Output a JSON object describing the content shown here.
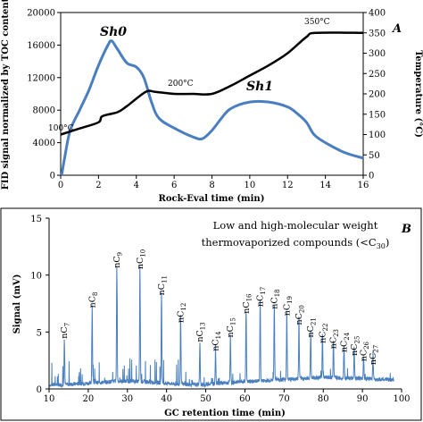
{
  "chart_data": [
    {
      "type": "line",
      "panel_label": "A",
      "xlabel": "Rock-Eval  time  (min)",
      "ylabel": "FID signal normalized by TOC content",
      "ylabel_right": "Temperature  (°C)",
      "xlim": [
        0,
        16
      ],
      "ylim": [
        0,
        20000
      ],
      "ylim_right": [
        0,
        400
      ],
      "x_ticks": [
        "0",
        "2",
        "4",
        "6",
        "8",
        "10",
        "12",
        "14",
        "16"
      ],
      "y_ticks": [
        "0",
        "4000",
        "8000",
        "12000",
        "16000",
        "20000"
      ],
      "y_right_ticks": [
        "0",
        "50",
        "100",
        "150",
        "200",
        "250",
        "300",
        "350",
        "400"
      ],
      "series": [
        {
          "name": "Sh0 / Sh1",
          "color": "#4a7fbf",
          "axis": "left",
          "points": [
            [
              0.05,
              0
            ],
            [
              0.2,
              2000
            ],
            [
              0.5,
              5500
            ],
            [
              1.0,
              8000
            ],
            [
              1.5,
              10500
            ],
            [
              2.0,
              13500
            ],
            [
              2.5,
              16000
            ],
            [
              2.7,
              16500
            ],
            [
              3.0,
              15500
            ],
            [
              3.5,
              13800
            ],
            [
              4.0,
              13300
            ],
            [
              4.4,
              12000
            ],
            [
              4.8,
              9000
            ],
            [
              5.2,
              7000
            ],
            [
              6.0,
              5800
            ],
            [
              7.0,
              4700
            ],
            [
              7.5,
              4500
            ],
            [
              8.0,
              5500
            ],
            [
              8.5,
              7000
            ],
            [
              9.0,
              8200
            ],
            [
              10.0,
              9000
            ],
            [
              11.0,
              9000
            ],
            [
              12.0,
              8400
            ],
            [
              12.5,
              7600
            ],
            [
              13.0,
              6500
            ],
            [
              13.4,
              5000
            ],
            [
              14.0,
              4000
            ],
            [
              15.0,
              2800
            ],
            [
              16.0,
              2100
            ]
          ]
        },
        {
          "name": "Temperature",
          "color": "#000000",
          "axis": "right",
          "points": [
            [
              0,
              100
            ],
            [
              1,
              115
            ],
            [
              2,
              130
            ],
            [
              2.2,
              145
            ],
            [
              3,
              155
            ],
            [
              3.5,
              170
            ],
            [
              4.5,
              205
            ],
            [
              5,
              205
            ],
            [
              6,
              200
            ],
            [
              7,
              200
            ],
            [
              8,
              200
            ],
            [
              9,
              220
            ],
            [
              10,
              245
            ],
            [
              11,
              270
            ],
            [
              12,
              300
            ],
            [
              13,
              340
            ],
            [
              13.5,
              350
            ],
            [
              16,
              350
            ]
          ]
        }
      ],
      "annotations": [
        "Sh0",
        "Sh1",
        "100°C",
        "200°C",
        "350°C"
      ]
    },
    {
      "type": "line",
      "panel_label": "B",
      "title": "Low and high-molecular  weight thermovaporized  compounds  (<C30)",
      "title_line1": "Low and high-molecular  weight",
      "title_line2": "thermovaporized  compounds  (<C",
      "title_sub": "30",
      "title_end": ")",
      "xlabel": "GC retention  time  (min)",
      "ylabel": "Signal (mV)",
      "xlim": [
        10,
        100
      ],
      "ylim": [
        0,
        15
      ],
      "x_ticks": [
        "10",
        "20",
        "30",
        "40",
        "50",
        "60",
        "70",
        "80",
        "90",
        "100"
      ],
      "y_ticks": [
        "0",
        "5",
        "10",
        "15"
      ],
      "color": "#4a7fbf",
      "peaks": [
        {
          "label": "nC",
          "sub": "7",
          "x": 13.9,
          "y": 4.1
        },
        {
          "label": "nC",
          "sub": "8",
          "x": 21.0,
          "y": 6.8
        },
        {
          "label": "nC",
          "sub": "9",
          "x": 27.3,
          "y": 10.3
        },
        {
          "label": "nC",
          "sub": "10",
          "x": 33.2,
          "y": 10.2
        },
        {
          "label": "nC",
          "sub": "11",
          "x": 38.7,
          "y": 7.9
        },
        {
          "label": "nC",
          "sub": "12",
          "x": 43.6,
          "y": 5.5
        },
        {
          "label": "nC",
          "sub": "13",
          "x": 48.5,
          "y": 3.8
        },
        {
          "label": "nC",
          "sub": "14",
          "x": 52.5,
          "y": 3.0
        },
        {
          "label": "nC",
          "sub": "15",
          "x": 56.3,
          "y": 4.2
        },
        {
          "label": "nC",
          "sub": "16",
          "x": 60.3,
          "y": 6.3
        },
        {
          "label": "nC",
          "sub": "17",
          "x": 63.9,
          "y": 6.9
        },
        {
          "label": "nC",
          "sub": "18",
          "x": 67.5,
          "y": 6.7
        },
        {
          "label": "nC",
          "sub": "19",
          "x": 70.7,
          "y": 6.1
        },
        {
          "label": "nC",
          "sub": "20",
          "x": 73.8,
          "y": 5.3
        },
        {
          "label": "nC",
          "sub": "21",
          "x": 76.8,
          "y": 4.2
        },
        {
          "label": "nC",
          "sub": "22",
          "x": 79.8,
          "y": 3.7
        },
        {
          "label": "nC",
          "sub": "23",
          "x": 82.6,
          "y": 3.2
        },
        {
          "label": "nC",
          "sub": "24",
          "x": 85.3,
          "y": 2.9
        },
        {
          "label": "nC",
          "sub": "25",
          "x": 87.9,
          "y": 2.6
        },
        {
          "label": "nC",
          "sub": "26",
          "x": 90.3,
          "y": 2.1
        },
        {
          "label": "nC",
          "sub": "27",
          "x": 92.7,
          "y": 1.8
        }
      ]
    }
  ]
}
